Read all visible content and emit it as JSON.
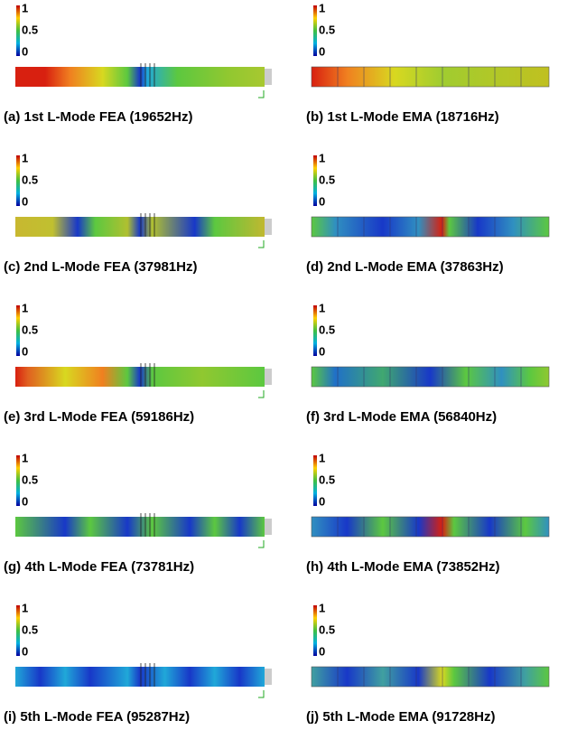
{
  "panels": [
    {
      "caption": "(a) 1st L-Mode FEA (19652Hz)",
      "colorbar": [
        "1",
        "0.5",
        "0"
      ]
    },
    {
      "caption": "(b) 1st L-Mode EMA (18716Hz)",
      "colorbar": [
        "1",
        "0.5",
        "0"
      ]
    },
    {
      "caption": "(c) 2nd L-Mode FEA (37981Hz)",
      "colorbar": [
        "1",
        "0.5",
        "0"
      ]
    },
    {
      "caption": "(d) 2nd L-Mode EMA (37863Hz)",
      "colorbar": [
        "1",
        "0.5",
        "0"
      ]
    },
    {
      "caption": "(e) 3rd L-Mode FEA (59186Hz)",
      "colorbar": [
        "1",
        "0.5",
        "0"
      ]
    },
    {
      "caption": "(f) 3rd L-Mode EMA (56840Hz)",
      "colorbar": [
        "1",
        "0.5",
        "0"
      ]
    },
    {
      "caption": "(g) 4th L-Mode FEA (73781Hz)",
      "colorbar": [
        "1",
        "0.5",
        "0"
      ]
    },
    {
      "caption": "(h) 4th L-Mode EMA (73852Hz)",
      "colorbar": [
        "1",
        "0.5",
        "0"
      ]
    },
    {
      "caption": "(i) 5th L-Mode FEA (95287Hz)",
      "colorbar": [
        "1",
        "0.5",
        "0"
      ]
    },
    {
      "caption": "(j) 5th L-Mode EMA (91728Hz)",
      "colorbar": [
        "1",
        "0.5",
        "0"
      ]
    }
  ]
}
